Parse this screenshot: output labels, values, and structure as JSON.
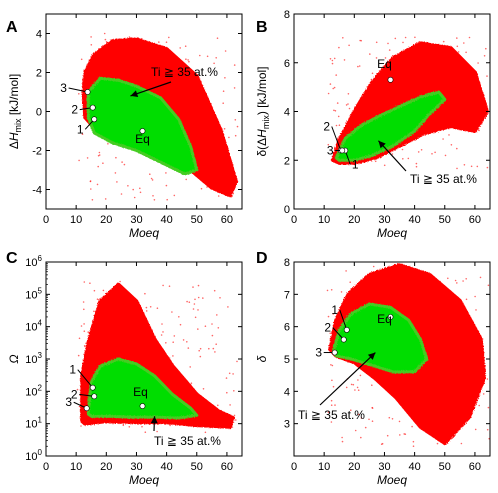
{
  "chart_data": [
    {
      "panel": "A",
      "type": "scatter",
      "xlabel": "Moeq",
      "ylabel": "ΔHmix [kJ/mol]",
      "xlim": [
        0,
        65
      ],
      "ylim": [
        -5,
        5
      ],
      "xticks": [
        "0",
        "10",
        "20",
        "30",
        "40",
        "50",
        "60"
      ],
      "yticks": [
        "-4",
        "-2",
        "0",
        "2",
        "4"
      ],
      "colors": {
        "all": "#ff0000",
        "ti35": "#00dd00"
      },
      "region_all": [
        [
          13,
          2.0
        ],
        [
          16,
          2.9
        ],
        [
          22,
          3.6
        ],
        [
          30,
          3.7
        ],
        [
          40,
          3.2
        ],
        [
          50,
          1.8
        ],
        [
          58,
          -1.0
        ],
        [
          63,
          -3.6
        ],
        [
          61,
          -4.3
        ],
        [
          55,
          -3.9
        ],
        [
          45,
          -2.6
        ],
        [
          35,
          -1.6
        ],
        [
          25,
          -1.2
        ],
        [
          17,
          -1.0
        ],
        [
          13,
          -0.3
        ],
        [
          12.5,
          1.0
        ]
      ],
      "region_ti35": [
        [
          14,
          1.0
        ],
        [
          18,
          1.7
        ],
        [
          24,
          1.6
        ],
        [
          30,
          1.3
        ],
        [
          38,
          0.7
        ],
        [
          44,
          -0.4
        ],
        [
          48,
          -1.8
        ],
        [
          50,
          -3.0
        ],
        [
          46,
          -3.2
        ],
        [
          38,
          -2.6
        ],
        [
          30,
          -2.0
        ],
        [
          22,
          -1.6
        ],
        [
          16,
          -1.1
        ],
        [
          14,
          -0.3
        ]
      ],
      "points": [
        {
          "label": "1",
          "x": 16.0,
          "y": -0.4
        },
        {
          "label": "2",
          "x": 15.5,
          "y": 0.2
        },
        {
          "label": "3",
          "x": 13.8,
          "y": 1.0
        },
        {
          "label": "Eq",
          "x": 32.0,
          "y": -1.0
        }
      ],
      "annotation": "Ti ≧ 35 at.%"
    },
    {
      "panel": "B",
      "type": "scatter",
      "xlabel": "Moeq",
      "ylabel": "δ(ΔHmix) [kJ/mol]",
      "xlim": [
        0,
        65
      ],
      "ylim": [
        0,
        8
      ],
      "xticks": [
        "0",
        "10",
        "20",
        "30",
        "40",
        "50",
        "60"
      ],
      "yticks": [
        "0",
        "2",
        "4",
        "6",
        "8"
      ],
      "colors": {
        "all": "#ff0000",
        "ti35": "#00dd00"
      },
      "region_all": [
        [
          13,
          2.0
        ],
        [
          15,
          2.8
        ],
        [
          20,
          4.0
        ],
        [
          26,
          5.2
        ],
        [
          33,
          6.2
        ],
        [
          42,
          6.8
        ],
        [
          52,
          6.6
        ],
        [
          60,
          5.6
        ],
        [
          64,
          4.0
        ],
        [
          60,
          3.2
        ],
        [
          52,
          3.4
        ],
        [
          43,
          3.1
        ],
        [
          35,
          2.6
        ],
        [
          27,
          2.1
        ],
        [
          20,
          1.9
        ],
        [
          15,
          1.9
        ]
      ],
      "region_ti35": [
        [
          14,
          2.1
        ],
        [
          17,
          2.9
        ],
        [
          22,
          3.4
        ],
        [
          28,
          3.8
        ],
        [
          35,
          4.2
        ],
        [
          42,
          4.6
        ],
        [
          48,
          4.8
        ],
        [
          50,
          4.5
        ],
        [
          45,
          3.9
        ],
        [
          40,
          3.2
        ],
        [
          33,
          2.6
        ],
        [
          26,
          2.2
        ],
        [
          20,
          2.0
        ],
        [
          15,
          2.0
        ]
      ],
      "points": [
        {
          "label": "1",
          "x": 17.0,
          "y": 2.4
        },
        {
          "label": "2",
          "x": 15.5,
          "y": 2.4
        },
        {
          "label": "3",
          "x": 16.0,
          "y": 2.4
        },
        {
          "label": "Eq",
          "x": 32.0,
          "y": 5.3
        }
      ],
      "annotation": "Ti ≧ 35 at.%"
    },
    {
      "panel": "C",
      "type": "scatter",
      "xlabel": "Moeq",
      "ylabel": "Ω",
      "xlim": [
        0,
        65
      ],
      "ylim": [
        1,
        1000000
      ],
      "yscale": "log",
      "xticks": [
        "0",
        "10",
        "20",
        "30",
        "40",
        "50",
        "60"
      ],
      "yticks": [
        "10^0",
        "10^1",
        "10^2",
        "10^3",
        "10^4",
        "10^5",
        "10^6"
      ],
      "colors": {
        "all": "#ff0000",
        "ti35": "#00dd00"
      },
      "region_all": [
        [
          12,
          12
        ],
        [
          12,
          300
        ],
        [
          14,
          3000
        ],
        [
          18,
          60000
        ],
        [
          24,
          200000
        ],
        [
          30,
          60000
        ],
        [
          36,
          4000
        ],
        [
          42,
          600
        ],
        [
          50,
          80
        ],
        [
          57,
          25
        ],
        [
          62,
          15
        ],
        [
          61,
          8
        ],
        [
          50,
          9
        ],
        [
          40,
          11
        ],
        [
          30,
          11
        ],
        [
          20,
          12
        ],
        [
          13,
          10
        ]
      ],
      "region_ti35": [
        [
          14,
          20
        ],
        [
          15,
          200
        ],
        [
          18,
          600
        ],
        [
          24,
          1000
        ],
        [
          30,
          700
        ],
        [
          36,
          300
        ],
        [
          42,
          80
        ],
        [
          48,
          30
        ],
        [
          50,
          18
        ],
        [
          44,
          15
        ],
        [
          36,
          16
        ],
        [
          28,
          16
        ],
        [
          20,
          17
        ],
        [
          15,
          17
        ]
      ],
      "points": [
        {
          "label": "1",
          "x": 15.5,
          "y": 130
        },
        {
          "label": "2",
          "x": 16.0,
          "y": 70
        },
        {
          "label": "3",
          "x": 13.5,
          "y": 30
        },
        {
          "label": "Eq",
          "x": 32.0,
          "y": 35
        }
      ],
      "annotation": "Ti ≧ 35 at.%"
    },
    {
      "panel": "D",
      "type": "scatter",
      "xlabel": "Moeq",
      "ylabel": "δ",
      "xlim": [
        0,
        65
      ],
      "ylim": [
        2,
        8
      ],
      "xticks": [
        "0",
        "10",
        "20",
        "30",
        "40",
        "50",
        "60"
      ],
      "yticks": [
        "3",
        "4",
        "5",
        "6",
        "7",
        "8"
      ],
      "colors": {
        "all": "#ff0000",
        "ti35": "#00dd00"
      },
      "region_all": [
        [
          12,
          5.3
        ],
        [
          14,
          6.2
        ],
        [
          18,
          7.0
        ],
        [
          25,
          7.6
        ],
        [
          35,
          7.9
        ],
        [
          45,
          7.6
        ],
        [
          55,
          6.8
        ],
        [
          62,
          5.6
        ],
        [
          63,
          4.4
        ],
        [
          58,
          3.2
        ],
        [
          50,
          2.4
        ],
        [
          42,
          2.9
        ],
        [
          34,
          3.8
        ],
        [
          27,
          4.4
        ],
        [
          20,
          4.9
        ],
        [
          14,
          5.1
        ]
      ],
      "region_ti35": [
        [
          13,
          5.2
        ],
        [
          15,
          5.9
        ],
        [
          19,
          6.4
        ],
        [
          25,
          6.7
        ],
        [
          32,
          6.6
        ],
        [
          38,
          6.2
        ],
        [
          42,
          5.6
        ],
        [
          44,
          5.0
        ],
        [
          40,
          4.6
        ],
        [
          33,
          4.6
        ],
        [
          26,
          4.8
        ],
        [
          19,
          5.0
        ],
        [
          14,
          5.1
        ]
      ],
      "points": [
        {
          "label": "1",
          "x": 17.5,
          "y": 5.9
        },
        {
          "label": "2",
          "x": 16.5,
          "y": 5.6
        },
        {
          "label": "3",
          "x": 13.5,
          "y": 5.2
        },
        {
          "label": "Eq",
          "x": 32.0,
          "y": 6.3
        }
      ],
      "annotation": "Ti ≧ 35 at.%"
    }
  ]
}
